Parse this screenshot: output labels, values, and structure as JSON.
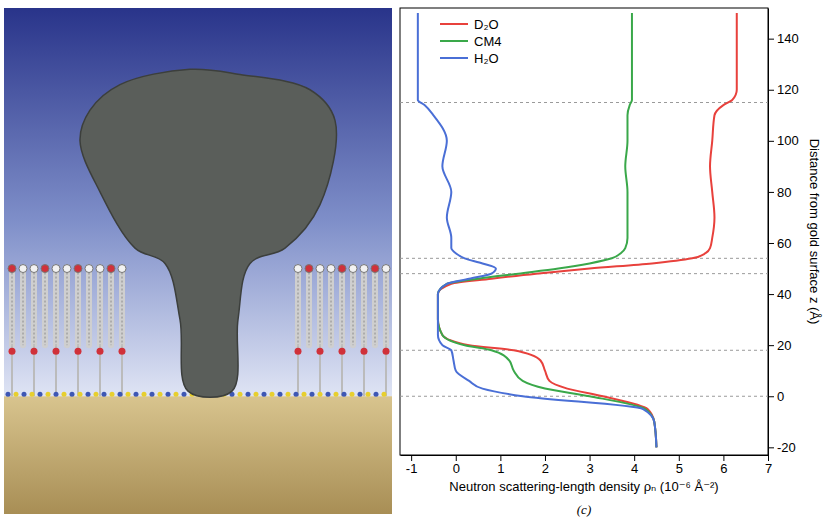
{
  "chart_data": {
    "type": "line",
    "x_label": "Neutron scattering-length density ρₙ (10⁻⁶ Å⁻²)",
    "y_label": "Distance from gold surface z (Å)",
    "caption": "(c)",
    "xlim": [
      -1.25,
      7
    ],
    "xticks": [
      -1,
      0,
      1,
      2,
      3,
      4,
      5,
      6,
      7
    ],
    "ylim": [
      -23,
      152
    ],
    "yticks": [
      -20,
      0,
      20,
      40,
      60,
      80,
      100,
      120,
      140
    ],
    "grid": false,
    "legend": "top-left",
    "reference_lines": [
      0,
      18,
      48,
      54,
      115
    ],
    "y": [
      -20,
      -10,
      -5,
      0,
      3,
      6,
      10,
      14,
      18,
      20,
      24,
      30,
      40,
      44,
      46,
      48,
      50,
      52,
      54,
      56,
      58,
      62,
      70,
      80,
      90,
      100,
      110,
      114,
      116,
      120,
      130,
      150
    ],
    "series": [
      {
        "name": "D₂O",
        "color": "#e8413c",
        "values": [
          4.5,
          4.45,
          4.3,
          3.3,
          2.5,
          2.1,
          2.0,
          1.9,
          1.3,
          0.3,
          -0.3,
          -0.4,
          -0.4,
          -0.1,
          0.8,
          1.8,
          3.0,
          4.4,
          5.3,
          5.6,
          5.7,
          5.75,
          5.8,
          5.75,
          5.7,
          5.75,
          5.8,
          6.0,
          6.2,
          6.3,
          6.3,
          6.3
        ]
      },
      {
        "name": "CM4",
        "color": "#3aa84a",
        "values": [
          4.5,
          4.45,
          4.25,
          3.0,
          2.0,
          1.5,
          1.3,
          1.2,
          0.8,
          0.2,
          -0.3,
          -0.4,
          -0.4,
          -0.2,
          0.5,
          1.4,
          2.3,
          3.0,
          3.5,
          3.7,
          3.8,
          3.85,
          3.85,
          3.85,
          3.8,
          3.85,
          3.85,
          3.9,
          3.95,
          3.95,
          3.95,
          3.95
        ]
      },
      {
        "name": "H₂O",
        "color": "#4a6fd6",
        "values": [
          4.5,
          4.45,
          4.2,
          1.5,
          0.6,
          0.3,
          0.0,
          -0.05,
          -0.1,
          -0.3,
          -0.4,
          -0.4,
          -0.4,
          -0.2,
          0.3,
          0.8,
          0.9,
          0.6,
          0.2,
          0.0,
          -0.1,
          -0.1,
          -0.2,
          -0.1,
          -0.3,
          -0.2,
          -0.5,
          -0.7,
          -0.85,
          -0.85,
          -0.85,
          -0.85
        ]
      }
    ]
  }
}
